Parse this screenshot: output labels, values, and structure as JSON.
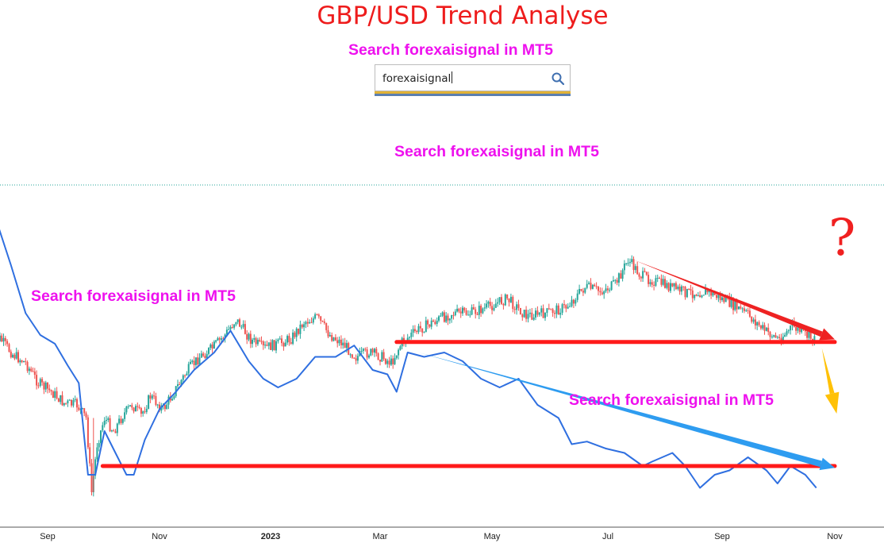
{
  "title": "GBP/USD Trend Analyse",
  "promo_text": "Search forexaisignal in MT5",
  "search": {
    "value": "forexaisignal"
  },
  "question_mark": "?",
  "colors": {
    "bull_candle": "#26a69a",
    "bear_candle": "#ef5350",
    "blue_line": "#2f6fe0",
    "support_line": "#ff1a1a",
    "blue_trend_arrow": "#2e9cf0",
    "red_trend_arrow": "#ee2222",
    "yellow_arrow": "#ffc107",
    "title": "#ee1c1c",
    "promo": "#ee11ee"
  },
  "chart_data": {
    "type": "candlestick",
    "title": "GBP/USD Trend Analyse",
    "x_tick_labels": [
      "Sep",
      "Nov",
      "2023",
      "Mar",
      "May",
      "Jul",
      "Sep",
      "Nov"
    ],
    "x_tick_months": [
      "2022-09",
      "2022-11",
      "2023-01",
      "2023-03",
      "2023-05",
      "2023-07",
      "2023-09",
      "2023-11"
    ],
    "bold_tick": "2023",
    "y_axis_visible": false,
    "grid": false,
    "candle_closes": [
      [
        "2022-08-01",
        1.21
      ],
      [
        "2022-08-07",
        1.216
      ],
      [
        "2022-08-14",
        1.198
      ],
      [
        "2022-08-21",
        1.188
      ],
      [
        "2022-08-28",
        1.165
      ],
      [
        "2022-09-04",
        1.155
      ],
      [
        "2022-09-11",
        1.142
      ],
      [
        "2022-09-18",
        1.14
      ],
      [
        "2022-09-23",
        1.125
      ],
      [
        "2022-09-26",
        1.04
      ],
      [
        "2022-09-29",
        1.095
      ],
      [
        "2022-10-03",
        1.125
      ],
      [
        "2022-10-08",
        1.11
      ],
      [
        "2022-10-13",
        1.128
      ],
      [
        "2022-10-18",
        1.14
      ],
      [
        "2022-10-23",
        1.128
      ],
      [
        "2022-10-28",
        1.15
      ],
      [
        "2022-11-04",
        1.135
      ],
      [
        "2022-11-10",
        1.155
      ],
      [
        "2022-11-17",
        1.178
      ],
      [
        "2022-11-24",
        1.195
      ],
      [
        "2022-12-01",
        1.205
      ],
      [
        "2022-12-08",
        1.22
      ],
      [
        "2022-12-14",
        1.238
      ],
      [
        "2022-12-22",
        1.215
      ],
      [
        "2022-12-29",
        1.205
      ],
      [
        "2023-01-06",
        1.21
      ],
      [
        "2023-01-13",
        1.216
      ],
      [
        "2023-01-20",
        1.235
      ],
      [
        "2023-01-27",
        1.24
      ],
      [
        "2023-02-03",
        1.22
      ],
      [
        "2023-02-10",
        1.21
      ],
      [
        "2023-02-17",
        1.195
      ],
      [
        "2023-02-24",
        1.2
      ],
      [
        "2023-03-03",
        1.195
      ],
      [
        "2023-03-08",
        1.188
      ],
      [
        "2023-03-14",
        1.212
      ],
      [
        "2023-03-22",
        1.225
      ],
      [
        "2023-03-31",
        1.235
      ],
      [
        "2023-04-10",
        1.245
      ],
      [
        "2023-04-20",
        1.245
      ],
      [
        "2023-04-30",
        1.252
      ],
      [
        "2023-05-10",
        1.262
      ],
      [
        "2023-05-20",
        1.242
      ],
      [
        "2023-05-30",
        1.245
      ],
      [
        "2023-06-10",
        1.252
      ],
      [
        "2023-06-20",
        1.275
      ],
      [
        "2023-06-28",
        1.27
      ],
      [
        "2023-07-06",
        1.278
      ],
      [
        "2023-07-13",
        1.306
      ],
      [
        "2023-07-20",
        1.288
      ],
      [
        "2023-07-27",
        1.282
      ],
      [
        "2023-08-05",
        1.275
      ],
      [
        "2023-08-15",
        1.268
      ],
      [
        "2023-08-25",
        1.27
      ],
      [
        "2023-09-05",
        1.258
      ],
      [
        "2023-09-15",
        1.245
      ],
      [
        "2023-09-25",
        1.225
      ],
      [
        "2023-10-03",
        1.215
      ],
      [
        "2023-10-10",
        1.23
      ],
      [
        "2023-10-16",
        1.222
      ],
      [
        "2023-10-22",
        1.214
      ]
    ],
    "blue_line": [
      [
        "2022-08-01",
        1.34
      ],
      [
        "2022-08-05",
        1.345
      ],
      [
        "2022-08-12",
        1.3
      ],
      [
        "2022-08-20",
        1.245
      ],
      [
        "2022-08-28",
        1.22
      ],
      [
        "2022-09-05",
        1.21
      ],
      [
        "2022-09-12",
        1.185
      ],
      [
        "2022-09-18",
        1.165
      ],
      [
        "2022-09-23",
        1.06
      ],
      [
        "2022-09-27",
        1.06
      ],
      [
        "2022-10-02",
        1.11
      ],
      [
        "2022-10-08",
        1.085
      ],
      [
        "2022-10-14",
        1.06
      ],
      [
        "2022-10-18",
        1.06
      ],
      [
        "2022-10-24",
        1.1
      ],
      [
        "2022-11-01",
        1.135
      ],
      [
        "2022-11-10",
        1.155
      ],
      [
        "2022-11-20",
        1.18
      ],
      [
        "2022-12-01",
        1.2
      ],
      [
        "2022-12-10",
        1.225
      ],
      [
        "2022-12-20",
        1.19
      ],
      [
        "2022-12-28",
        1.17
      ],
      [
        "2023-01-05",
        1.16
      ],
      [
        "2023-01-15",
        1.17
      ],
      [
        "2023-01-25",
        1.195
      ],
      [
        "2023-02-05",
        1.195
      ],
      [
        "2023-02-15",
        1.208
      ],
      [
        "2023-02-25",
        1.18
      ],
      [
        "2023-03-05",
        1.175
      ],
      [
        "2023-03-10",
        1.155
      ],
      [
        "2023-03-16",
        1.2
      ],
      [
        "2023-03-25",
        1.195
      ],
      [
        "2023-04-05",
        1.2
      ],
      [
        "2023-04-15",
        1.19
      ],
      [
        "2023-04-25",
        1.17
      ],
      [
        "2023-05-05",
        1.16
      ],
      [
        "2023-05-15",
        1.17
      ],
      [
        "2023-05-25",
        1.14
      ],
      [
        "2023-06-05",
        1.125
      ],
      [
        "2023-06-12",
        1.095
      ],
      [
        "2023-06-20",
        1.098
      ],
      [
        "2023-06-30",
        1.09
      ],
      [
        "2023-07-10",
        1.085
      ],
      [
        "2023-07-20",
        1.07
      ],
      [
        "2023-07-25",
        1.075
      ],
      [
        "2023-08-05",
        1.085
      ],
      [
        "2023-08-12",
        1.07
      ],
      [
        "2023-08-20",
        1.045
      ],
      [
        "2023-08-28",
        1.06
      ],
      [
        "2023-09-05",
        1.065
      ],
      [
        "2023-09-15",
        1.08
      ],
      [
        "2023-09-25",
        1.065
      ],
      [
        "2023-10-01",
        1.05
      ],
      [
        "2023-10-08",
        1.07
      ],
      [
        "2023-10-16",
        1.06
      ],
      [
        "2023-10-22",
        1.045
      ]
    ],
    "annotations": [
      {
        "type": "horizontal_line",
        "name": "upper-support-line",
        "color": "red",
        "from_date": "2023-03-10",
        "to_date": "2023-11-01",
        "y": 1.212
      },
      {
        "type": "horizontal_line",
        "name": "lower-support-line",
        "color": "red",
        "from_date": "2022-10-01",
        "to_date": "2023-11-01",
        "y": 1.07
      },
      {
        "type": "arrow",
        "name": "red-downtrend-arrow",
        "color": "red",
        "from": [
          "2023-07-15",
          1.306
        ],
        "to": [
          "2023-11-01",
          1.215
        ]
      },
      {
        "type": "arrow",
        "name": "blue-downtrend-arrow",
        "color": "blue",
        "from": [
          "2023-03-22",
          1.2
        ],
        "to": [
          "2023-11-01",
          1.068
        ]
      },
      {
        "type": "arrow",
        "name": "yellow-down-arrow",
        "color": "yellow",
        "from": [
          "2023-10-25",
          1.205
        ],
        "to": [
          "2023-11-02",
          1.13
        ]
      },
      {
        "type": "text",
        "text": "?",
        "color": "red",
        "at": [
          "2023-10-31",
          1.195
        ]
      }
    ]
  }
}
